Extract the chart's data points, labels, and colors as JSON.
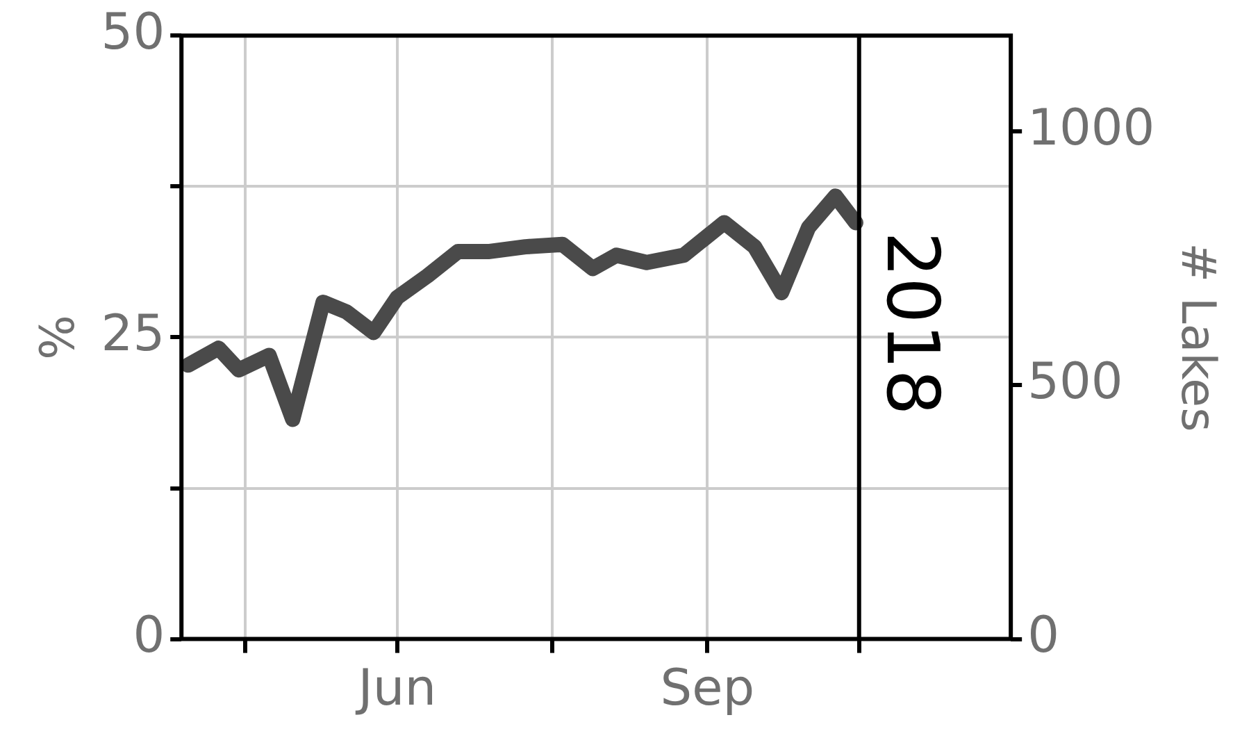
{
  "chart_data": {
    "type": "line",
    "ylabel": "%",
    "y2label": "# Lakes",
    "x": [
      "--03-31",
      "--04-09",
      "--04-15",
      "--04-24",
      "--05-01",
      "--05-10",
      "--05-17",
      "--05-25",
      "--06-01",
      "--06-10",
      "--06-19",
      "--06-28",
      "--07-09",
      "--07-20",
      "--07-29",
      "--08-05",
      "--08-14",
      "--08-25",
      "--09-06",
      "--09-15",
      "--09-23",
      "--10-01",
      "--10-09",
      "--10-15"
    ],
    "series": [
      {
        "color": "#4a4a4a",
        "values": [
          22.7,
          24.1,
          22.3,
          23.5,
          18.2,
          27.9,
          27.1,
          25.4,
          28.3,
          30.1,
          32.1,
          32.1,
          32.5,
          32.7,
          30.7,
          31.8,
          31.2,
          31.8,
          34.5,
          32.5,
          28.7,
          34.1,
          36.7,
          34.5
        ]
      }
    ],
    "xlim": [
      "--03-29",
      "--11-30"
    ],
    "xticks": [
      {
        "value": "--04-17",
        "label": null
      },
      {
        "value": "--06-01",
        "label": "Jun"
      },
      {
        "value": "--07-17",
        "label": null
      },
      {
        "value": "--09-01",
        "label": "Sep"
      },
      {
        "value": "--10-16",
        "label": null
      }
    ],
    "ylim": [
      0,
      50
    ],
    "yticks": [
      0,
      {
        "value": 12.5,
        "label": null
      },
      25,
      {
        "value": 37.5,
        "label": null
      },
      50
    ],
    "y2lim": [
      0,
      1189
    ],
    "y2ticks": [
      0,
      500,
      1000
    ],
    "ref_lines": [
      {
        "axis": "x",
        "value": "--10-16",
        "label": "2018",
        "color": "#000000"
      }
    ],
    "grid": true,
    "legend": false,
    "marker": "none",
    "line_style": "solid"
  }
}
